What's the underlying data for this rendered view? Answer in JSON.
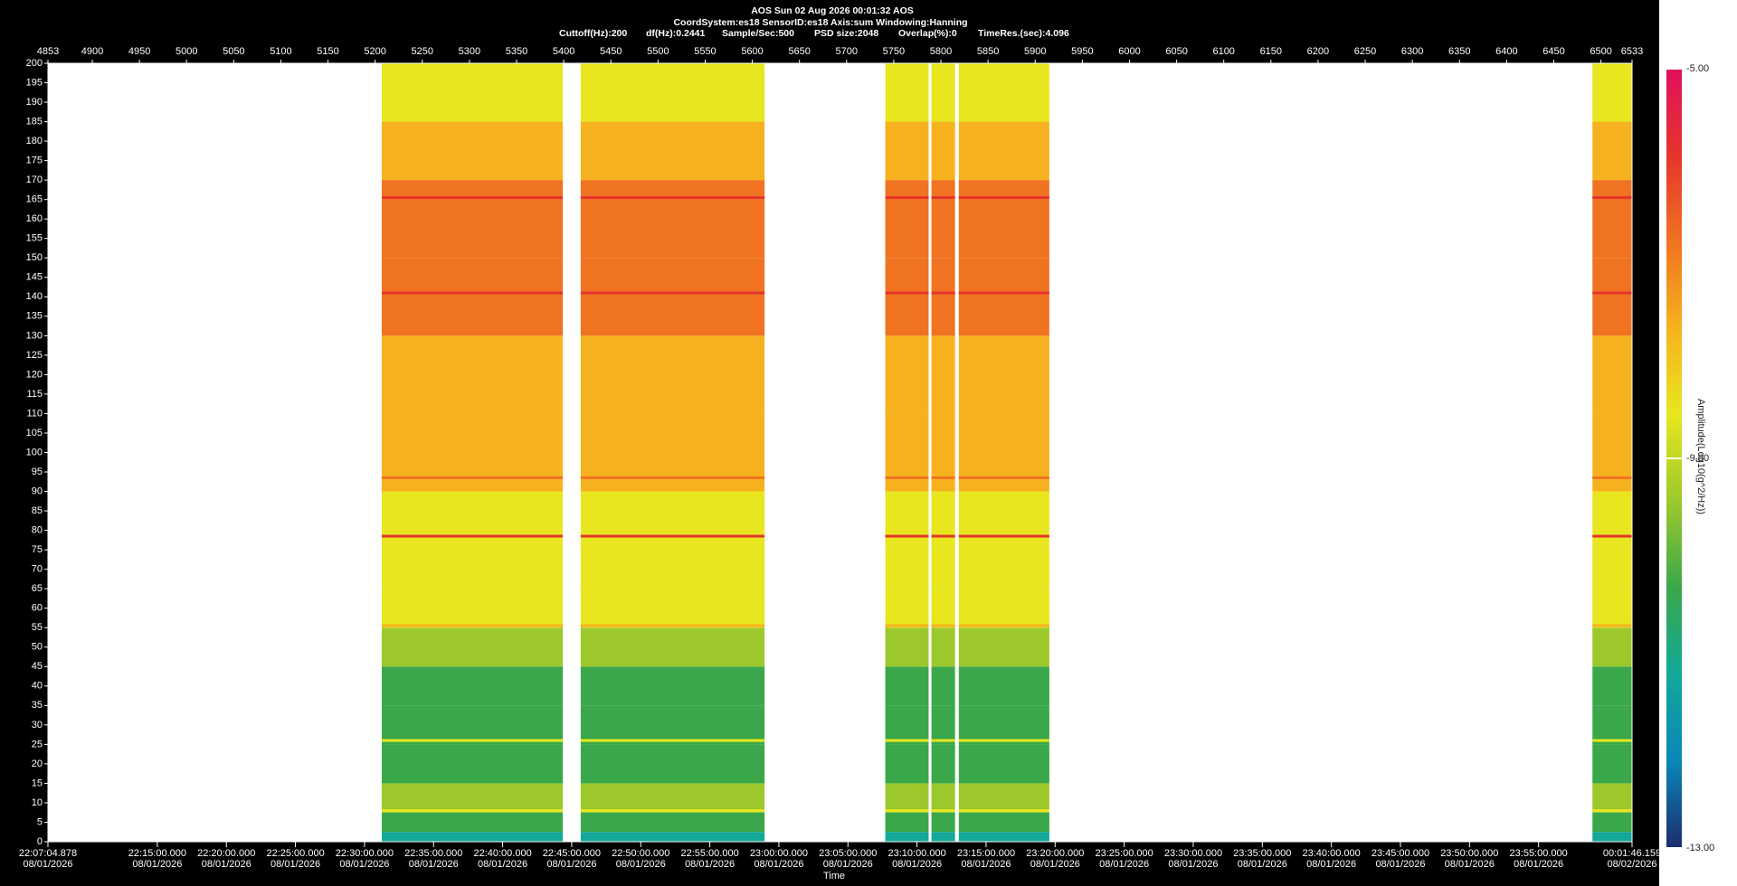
{
  "chart_data": {
    "type": "spectrogram",
    "header": {
      "title": "AOS  Sun 02 Aug 2026 00:01:32  AOS",
      "line2": "CoordSystem:es18   SensorID:es18   Axis:sum   Windowing:Hanning",
      "params": [
        "Cuttoff(Hz):200",
        "df(Hz):0.2441",
        "Sample/Sec:500",
        "PSD size:2048",
        "Overlap(%):0",
        "TimeRes.(sec):4.096"
      ]
    },
    "x_label": "Time",
    "xlim": [
      4853,
      6533
    ],
    "xticks": [
      4853,
      4900,
      4950,
      5000,
      5050,
      5100,
      5150,
      5200,
      5250,
      5300,
      5350,
      5400,
      5450,
      5500,
      5550,
      5600,
      5650,
      5700,
      5750,
      5800,
      5850,
      5900,
      5950,
      6000,
      6050,
      6100,
      6150,
      6200,
      6250,
      6300,
      6350,
      6400,
      6450,
      6500,
      6533
    ],
    "ylim": [
      0,
      200
    ],
    "yticks": [
      0,
      5,
      10,
      15,
      20,
      25,
      30,
      35,
      40,
      45,
      50,
      55,
      60,
      65,
      70,
      75,
      80,
      85,
      90,
      95,
      100,
      105,
      110,
      115,
      120,
      125,
      130,
      135,
      140,
      145,
      150,
      155,
      160,
      165,
      170,
      175,
      180,
      185,
      190,
      195,
      200
    ],
    "time_lim": [
      79624.878,
      86506.159
    ],
    "time_ticks": [
      {
        "value": 79624.878,
        "label": "22:07:04.878",
        "date": "08/01/2026"
      },
      {
        "value": 80100,
        "label": "22:15:00.000",
        "date": "08/01/2026"
      },
      {
        "value": 80400,
        "label": "22:20:00.000",
        "date": "08/01/2026"
      },
      {
        "value": 80700,
        "label": "22:25:00.000",
        "date": "08/01/2026"
      },
      {
        "value": 81000,
        "label": "22:30:00.000",
        "date": "08/01/2026"
      },
      {
        "value": 81300,
        "label": "22:35:00.000",
        "date": "08/01/2026"
      },
      {
        "value": 81600,
        "label": "22:40:00.000",
        "date": "08/01/2026"
      },
      {
        "value": 81900,
        "label": "22:45:00.000",
        "date": "08/01/2026"
      },
      {
        "value": 82200,
        "label": "22:50:00.000",
        "date": "08/01/2026"
      },
      {
        "value": 82500,
        "label": "22:55:00.000",
        "date": "08/01/2026"
      },
      {
        "value": 82800,
        "label": "23:00:00.000",
        "date": "08/01/2026"
      },
      {
        "value": 83100,
        "label": "23:05:00.000",
        "date": "08/01/2026"
      },
      {
        "value": 83400,
        "label": "23:10:00.000",
        "date": "08/01/2026"
      },
      {
        "value": 83700,
        "label": "23:15:00.000",
        "date": "08/01/2026"
      },
      {
        "value": 84000,
        "label": "23:20:00.000",
        "date": "08/01/2026"
      },
      {
        "value": 84300,
        "label": "23:25:00.000",
        "date": "08/01/2026"
      },
      {
        "value": 84600,
        "label": "23:30:00.000",
        "date": "08/01/2026"
      },
      {
        "value": 84900,
        "label": "23:35:00.000",
        "date": "08/01/2026"
      },
      {
        "value": 85200,
        "label": "23:40:00.000",
        "date": "08/01/2026"
      },
      {
        "value": 85500,
        "label": "23:45:00.000",
        "date": "08/01/2026"
      },
      {
        "value": 85800,
        "label": "23:50:00.000",
        "date": "08/01/2026"
      },
      {
        "value": 86100,
        "label": "23:55:00.000",
        "date": "08/01/2026"
      },
      {
        "value": 86506.159,
        "label": "00:01:46.159",
        "date": "08/02/2026"
      }
    ],
    "segments": [
      [
        5207,
        5399
      ],
      [
        5418,
        5613
      ],
      [
        5741,
        5787
      ],
      [
        5790,
        5815
      ],
      [
        5819,
        5915
      ],
      [
        6491,
        6533
      ]
    ],
    "profile": {
      "freq": [
        0,
        5,
        10,
        20,
        30,
        40,
        50,
        60,
        70,
        80,
        100,
        120,
        140,
        160,
        180,
        190,
        200
      ],
      "amplitude": [
        -11.5,
        -10.2,
        -9.6,
        -9.9,
        -10.1,
        -10.3,
        -9.4,
        -9.0,
        -8.9,
        -8.5,
        -8.1,
        -7.6,
        -7.1,
        -6.9,
        -7.3,
        -8.3,
        -8.6
      ]
    },
    "lines": [
      {
        "freq": 141,
        "amplitude": -5.6
      },
      {
        "freq": 165.5,
        "amplitude": -6.2
      },
      {
        "freq": 93.5,
        "amplitude": -6.4
      },
      {
        "freq": 78.5,
        "amplitude": -6.3
      },
      {
        "freq": 55.5,
        "amplitude": -7.5
      },
      {
        "freq": 26,
        "amplitude": -8.6
      },
      {
        "freq": 8,
        "amplitude": -8.2
      }
    ],
    "colorbar_label": "Amplitude(Log10(g^2/Hz))",
    "clim": [
      -13,
      -5
    ],
    "cticks": [
      {
        "value": -13,
        "label": "-13.00"
      },
      {
        "value": -9,
        "label": "-9.00"
      },
      {
        "value": -5,
        "label": "-5.00"
      }
    ],
    "colormap": [
      "#1c2c6e",
      "#0a86b8",
      "#13a89a",
      "#3aa84a",
      "#9cc82c",
      "#e8e61e",
      "#f6b21e",
      "#f07322",
      "#e6342c",
      "#e0105e"
    ]
  }
}
